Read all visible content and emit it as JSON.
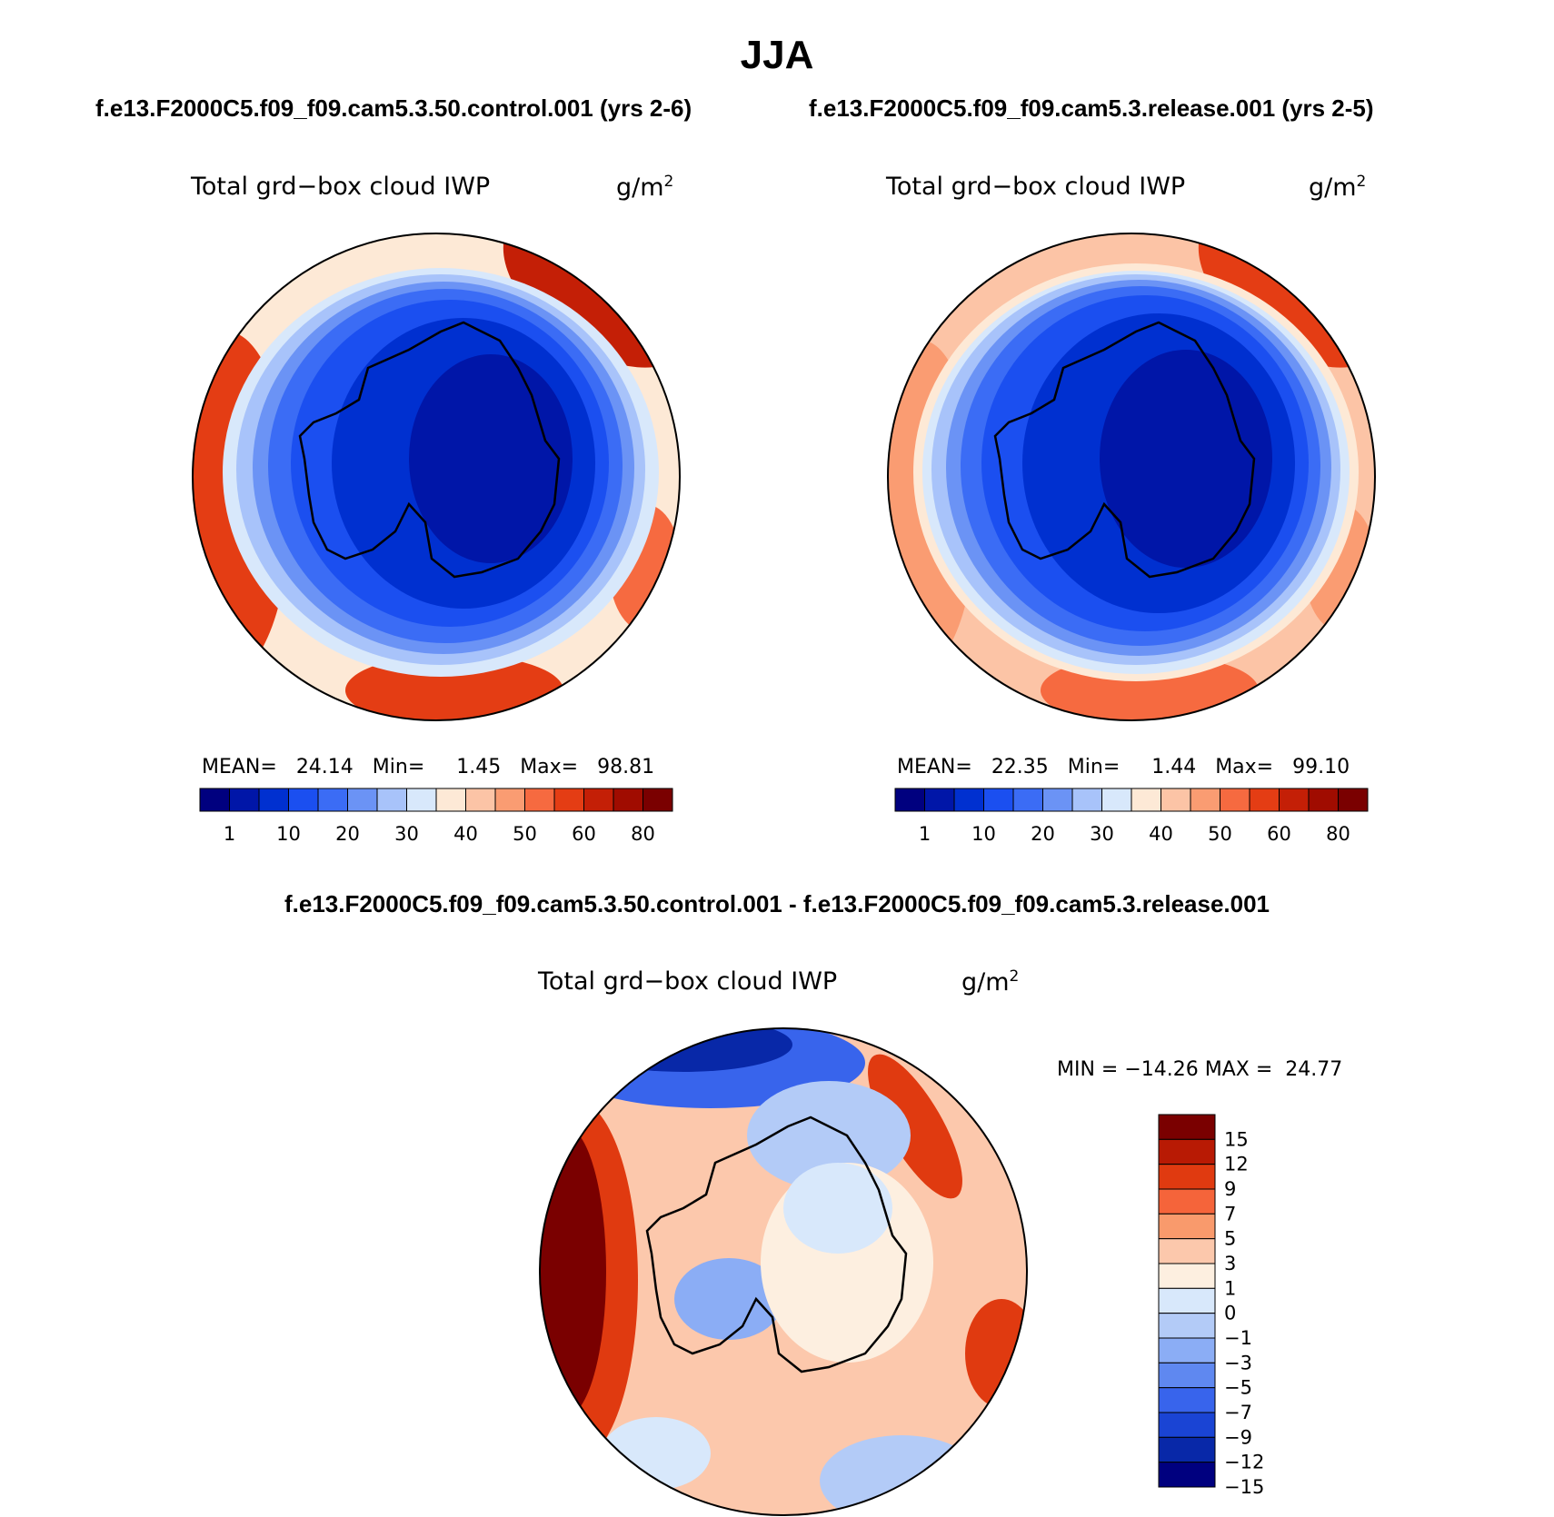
{
  "figure": {
    "title": "JJA",
    "case_a_title": "f.e13.F2000C5.f09_f09.cam5.3.50.control.001 (yrs 2-6)",
    "case_b_title": "f.e13.F2000C5.f09_f09.cam5.3.release.001 (yrs 2-5)",
    "diff_title": "f.e13.F2000C5.f09_f09.cam5.3.50.control.001 - f.e13.F2000C5.f09_f09.cam5.3.release.001"
  },
  "panels": [
    {
      "variable": "Total grd−box cloud IWP",
      "units": "g/m",
      "units_exp": "2",
      "mean_label": "MEAN=",
      "mean": "24.14",
      "min_label": "Min=",
      "min": "1.45",
      "max_label": "Max=",
      "max": "98.81"
    },
    {
      "variable": "Total grd−box cloud IWP",
      "units": "g/m",
      "units_exp": "2",
      "mean_label": "MEAN=",
      "mean": "22.35",
      "min_label": "Min=",
      "min": "1.44",
      "max_label": "Max=",
      "max": "99.10"
    },
    {
      "variable": "Total grd−box cloud IWP",
      "units": "g/m",
      "units_exp": "2",
      "minmax_text": "MIN = −14.26 MAX =  24.77"
    }
  ],
  "colorbar_abs": {
    "colors": [
      "#00007f",
      "#0016a8",
      "#0030d0",
      "#1b4ff0",
      "#3b6cf5",
      "#6b93f5",
      "#a8c3fa",
      "#d8e8fb",
      "#fde9d6",
      "#fcc4a6",
      "#fa9c72",
      "#f66a40",
      "#e43d14",
      "#c41f06",
      "#a00c00",
      "#7a0000"
    ],
    "labels": [
      "1",
      "10",
      "20",
      "30",
      "40",
      "50",
      "60",
      "80"
    ]
  },
  "colorbar_diff": {
    "colors": [
      "#7a0000",
      "#b81a04",
      "#e03a10",
      "#f5643a",
      "#f99a6c",
      "#fcc8ac",
      "#fdefe0",
      "#d8e8fb",
      "#b3cbf7",
      "#8badf5",
      "#5f88f0",
      "#3864ec",
      "#1a44d4",
      "#0828a8",
      "#00007f"
    ],
    "labels": [
      "15",
      "12",
      "9",
      "7",
      "5",
      "3",
      "1",
      "0",
      "−1",
      "−3",
      "−5",
      "−7",
      "−9",
      "−12",
      "−15"
    ]
  }
}
